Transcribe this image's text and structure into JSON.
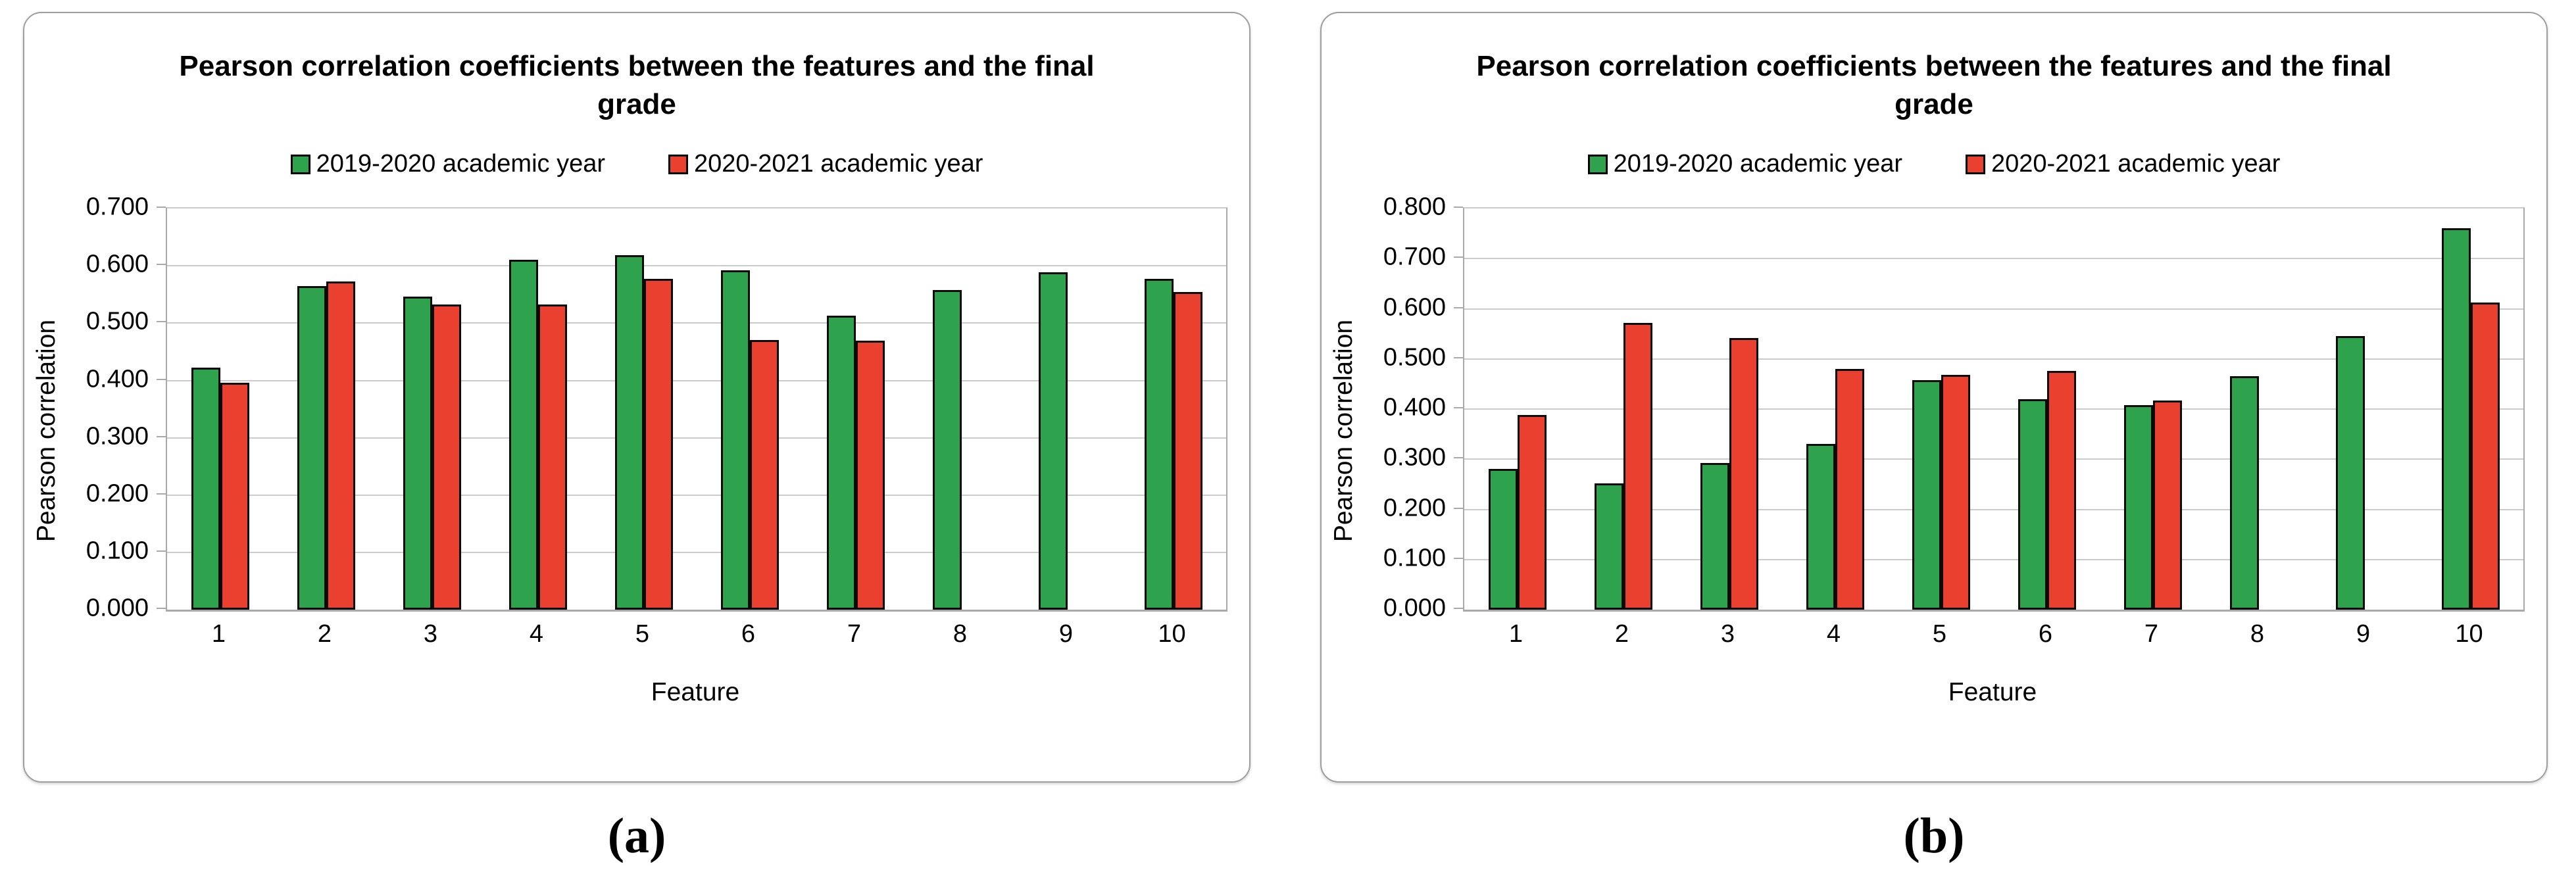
{
  "figure": {
    "description": "Two grouped bar charts comparing Pearson correlation of 10 features with final grade across two academic years"
  },
  "chart_data": [
    {
      "id": "a",
      "type": "bar",
      "title": "Pearson correlation coefficients between the features and the final grade",
      "xlabel": "Feature",
      "ylabel": "Pearson correlation",
      "caption": "(a)",
      "ylim": [
        0,
        0.7
      ],
      "yticks": [
        "0.000",
        "0.100",
        "0.200",
        "0.300",
        "0.400",
        "0.500",
        "0.600",
        "0.700"
      ],
      "grid": true,
      "legend_position": "top",
      "categories": [
        "1",
        "2",
        "3",
        "4",
        "5",
        "6",
        "7",
        "8",
        "9",
        "10"
      ],
      "series": [
        {
          "name": "2019-2020 academic year",
          "color": "#2ea24c",
          "values": [
            0.422,
            0.565,
            0.546,
            0.611,
            0.618,
            0.592,
            0.513,
            0.558,
            0.589,
            0.577
          ]
        },
        {
          "name": "2020-2021 academic year",
          "color": "#e9402f",
          "values": [
            0.396,
            0.573,
            0.532,
            0.532,
            0.577,
            0.471,
            0.469,
            null,
            null,
            0.554
          ]
        }
      ]
    },
    {
      "id": "b",
      "type": "bar",
      "title": "Pearson correlation coefficients between the features and the final grade",
      "xlabel": "Feature",
      "ylabel": "Pearson correlation",
      "caption": "(b)",
      "ylim": [
        0,
        0.8
      ],
      "yticks": [
        "0.000",
        "0.100",
        "0.200",
        "0.300",
        "0.400",
        "0.500",
        "0.600",
        "0.700",
        "0.800"
      ],
      "grid": true,
      "legend_position": "top",
      "categories": [
        "1",
        "2",
        "3",
        "4",
        "5",
        "6",
        "7",
        "8",
        "9",
        "10"
      ],
      "series": [
        {
          "name": "2019-2020 academic year",
          "color": "#2ea24c",
          "values": [
            0.28,
            0.252,
            0.292,
            0.331,
            0.458,
            0.42,
            0.408,
            0.466,
            0.546,
            0.76
          ]
        },
        {
          "name": "2020-2021 academic year",
          "color": "#e9402f",
          "values": [
            0.388,
            0.572,
            0.542,
            0.48,
            0.468,
            0.476,
            0.417,
            null,
            null,
            0.612
          ]
        }
      ]
    }
  ]
}
